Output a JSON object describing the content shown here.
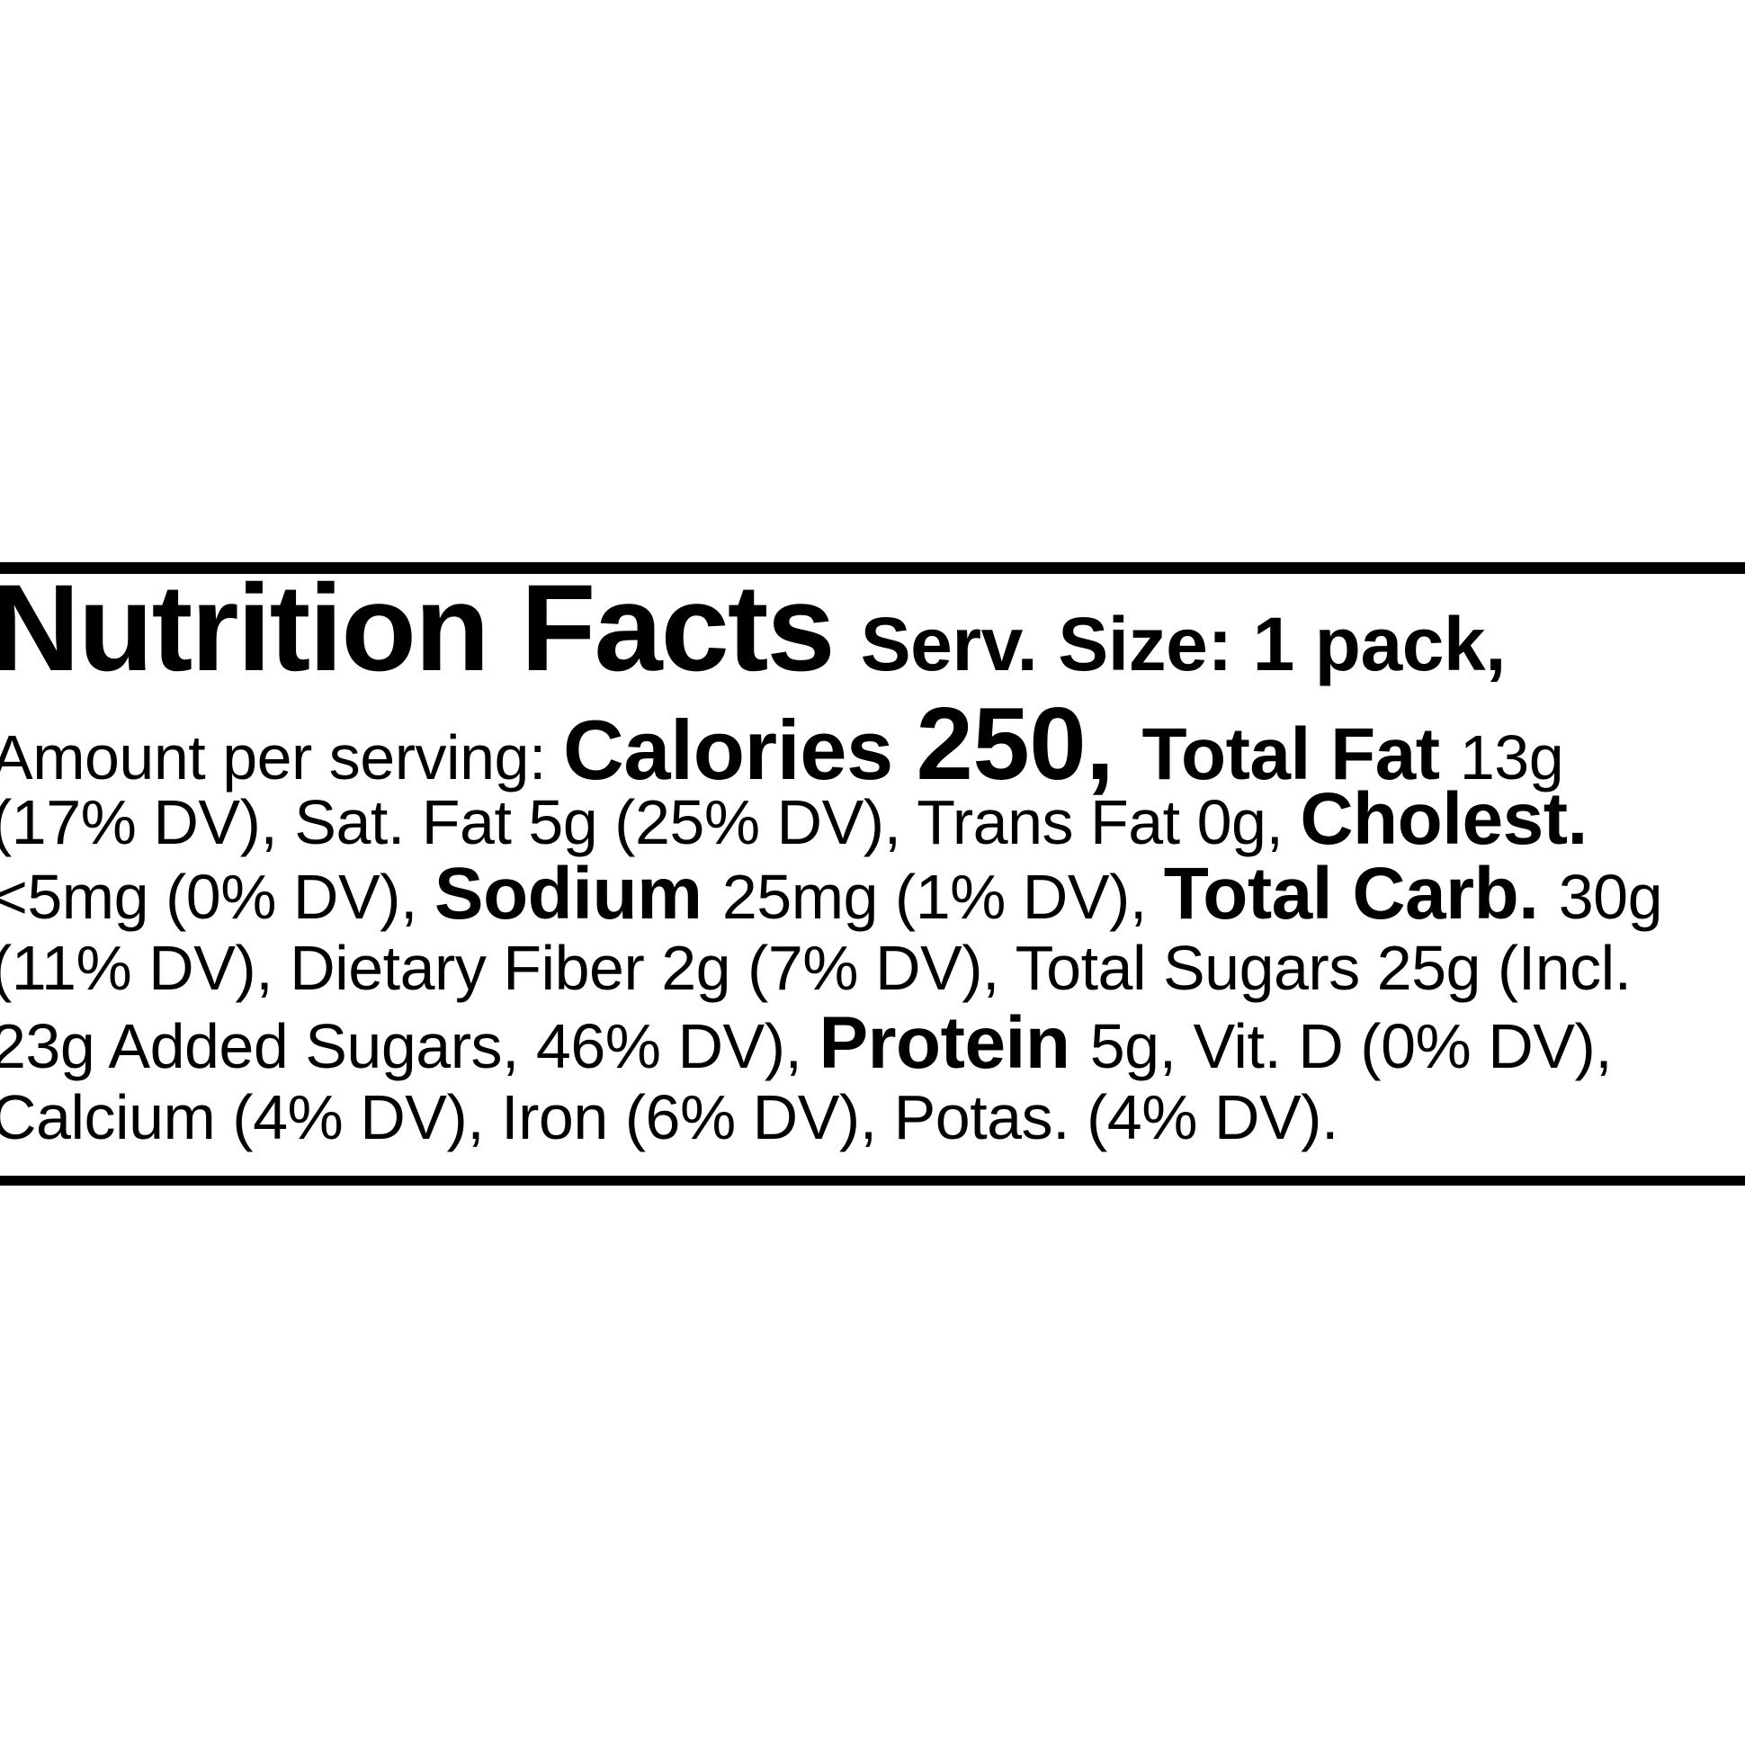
{
  "label": {
    "background_color": "#ffffff",
    "text_color": "#000000",
    "border_color": "#000000",
    "title": "Nutrition Facts",
    "serving_size": "Serv. Size: 1 pack,",
    "lines": [
      {
        "segments": [
          {
            "text": "Amount per serving: ",
            "style": "regular"
          },
          {
            "text": "Calories ",
            "style": "calories-label"
          },
          {
            "text": "250, ",
            "style": "calories-value"
          },
          {
            "text": "Total Fat ",
            "style": "nutrient"
          },
          {
            "text": "13g",
            "style": "regular"
          }
        ]
      },
      {
        "segments": [
          {
            "text": "(17% DV), Sat. Fat 5g (25% DV), Trans Fat 0g, ",
            "style": "regular"
          },
          {
            "text": "Cholest.",
            "style": "nutrient"
          }
        ]
      },
      {
        "segments": [
          {
            "text": "<5mg (0% DV), ",
            "style": "regular"
          },
          {
            "text": "Sodium ",
            "style": "nutrient"
          },
          {
            "text": "25mg (1% DV), ",
            "style": "regular"
          },
          {
            "text": "Total Carb. ",
            "style": "nutrient"
          },
          {
            "text": "30g",
            "style": "regular"
          }
        ]
      },
      {
        "segments": [
          {
            "text": "(11% DV), Dietary Fiber 2g (7% DV), Total Sugars 25g (Incl.",
            "style": "regular"
          }
        ]
      },
      {
        "segments": [
          {
            "text": "23g Added Sugars, 46% DV), ",
            "style": "regular"
          },
          {
            "text": "Protein ",
            "style": "nutrient"
          },
          {
            "text": "5g, Vit. D (0% DV),",
            "style": "regular"
          }
        ]
      },
      {
        "segments": [
          {
            "text": "Calcium (4% DV), Iron (6% DV), Potas. (4% DV).",
            "style": "regular"
          }
        ]
      }
    ],
    "facts": {
      "serving_size": "1 pack",
      "calories": "250",
      "total_fat": "13g (17% DV)",
      "saturated_fat": "5g (25% DV)",
      "trans_fat": "0g",
      "cholesterol": "<5mg (0% DV)",
      "sodium": "25mg (1% DV)",
      "total_carbohydrate": "30g (11% DV)",
      "dietary_fiber": "2g (7% DV)",
      "total_sugars": "25g",
      "added_sugars": "23g (46% DV)",
      "protein": "5g",
      "vitamin_d": "0% DV",
      "calcium": "4% DV",
      "iron": "6% DV",
      "potassium": "4% DV"
    }
  }
}
